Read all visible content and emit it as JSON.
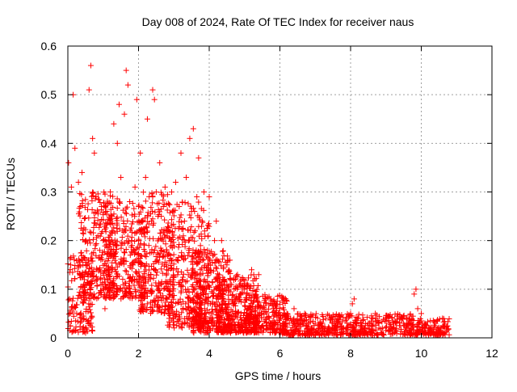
{
  "chart_data": {
    "type": "scatter",
    "title": "Day 008 of 2024, Rate Of TEC Index for receiver naus",
    "xlabel": "GPS time / hours",
    "ylabel": "ROTI / TECUs",
    "xlim": [
      0,
      12
    ],
    "ylim": [
      0,
      0.6
    ],
    "x_ticks": [
      {
        "value": 0,
        "label": "0"
      },
      {
        "value": 2,
        "label": "2"
      },
      {
        "value": 4,
        "label": "4"
      },
      {
        "value": 6,
        "label": "6"
      },
      {
        "value": 8,
        "label": "8"
      },
      {
        "value": 10,
        "label": "10"
      },
      {
        "value": 12,
        "label": "12"
      }
    ],
    "y_ticks": [
      {
        "value": 0,
        "label": "0"
      },
      {
        "value": 0.1,
        "label": "0.1"
      },
      {
        "value": 0.2,
        "label": "0.2"
      },
      {
        "value": 0.3,
        "label": "0.3"
      },
      {
        "value": 0.4,
        "label": "0.4"
      },
      {
        "value": 0.5,
        "label": "0.5"
      },
      {
        "value": 0.6,
        "label": "0.6"
      }
    ],
    "grid": true,
    "marker": "plus",
    "color": "#ff0000",
    "series": [
      {
        "name": "ROTI",
        "points": [
          [
            0.02,
            0.36
          ],
          [
            0.05,
            0.08
          ],
          [
            0.1,
            0.31
          ],
          [
            0.15,
            0.5
          ],
          [
            0.2,
            0.39
          ],
          [
            0.25,
            0.05
          ],
          [
            0.3,
            0.32
          ],
          [
            0.35,
            0.27
          ],
          [
            0.4,
            0.34
          ],
          [
            0.45,
            0.11
          ],
          [
            0.5,
            0.2
          ],
          [
            0.55,
            0.15
          ],
          [
            0.6,
            0.51
          ],
          [
            0.65,
            0.56
          ],
          [
            0.7,
            0.41
          ],
          [
            0.75,
            0.38
          ],
          [
            0.8,
            0.29
          ],
          [
            0.85,
            0.21
          ],
          [
            0.9,
            0.18
          ],
          [
            0.95,
            0.27
          ],
          [
            1.0,
            0.2
          ],
          [
            1.05,
            0.06
          ],
          [
            1.1,
            0.26
          ],
          [
            1.15,
            0.2
          ],
          [
            1.2,
            0.3
          ],
          [
            1.25,
            0.22
          ],
          [
            1.3,
            0.44
          ],
          [
            1.35,
            0.19
          ],
          [
            1.4,
            0.4
          ],
          [
            1.45,
            0.48
          ],
          [
            1.5,
            0.33
          ],
          [
            1.55,
            0.22
          ],
          [
            1.6,
            0.46
          ],
          [
            1.65,
            0.55
          ],
          [
            1.7,
            0.52
          ],
          [
            1.75,
            0.28
          ],
          [
            1.8,
            0.2
          ],
          [
            1.85,
            0.15
          ],
          [
            1.9,
            0.31
          ],
          [
            1.95,
            0.49
          ],
          [
            2.0,
            0.27
          ],
          [
            2.05,
            0.38
          ],
          [
            2.1,
            0.24
          ],
          [
            2.15,
            0.1
          ],
          [
            2.2,
            0.33
          ],
          [
            2.25,
            0.45
          ],
          [
            2.3,
            0.29
          ],
          [
            2.35,
            0.13
          ],
          [
            2.4,
            0.51
          ],
          [
            2.45,
            0.49
          ],
          [
            2.5,
            0.3
          ],
          [
            2.55,
            0.25
          ],
          [
            2.6,
            0.36
          ],
          [
            2.65,
            0.18
          ],
          [
            2.7,
            0.27
          ],
          [
            2.75,
            0.31
          ],
          [
            2.8,
            0.14
          ],
          [
            2.85,
            0.22
          ],
          [
            2.9,
            0.11
          ],
          [
            2.95,
            0.19
          ],
          [
            3.0,
            0.05
          ],
          [
            3.05,
            0.32
          ],
          [
            3.1,
            0.16
          ],
          [
            3.15,
            0.27
          ],
          [
            3.2,
            0.38
          ],
          [
            3.25,
            0.12
          ],
          [
            3.3,
            0.24
          ],
          [
            3.35,
            0.33
          ],
          [
            3.4,
            0.1
          ],
          [
            3.45,
            0.41
          ],
          [
            3.5,
            0.26
          ],
          [
            3.55,
            0.43
          ],
          [
            3.6,
            0.22
          ],
          [
            3.65,
            0.29
          ],
          [
            3.7,
            0.37
          ],
          [
            3.75,
            0.14
          ],
          [
            3.8,
            0.24
          ],
          [
            3.85,
            0.3
          ],
          [
            3.9,
            0.09
          ],
          [
            3.95,
            0.18
          ],
          [
            4.0,
            0.29
          ],
          [
            4.1,
            0.07
          ],
          [
            4.15,
            0.2
          ],
          [
            4.2,
            0.24
          ],
          [
            4.3,
            0.12
          ],
          [
            4.35,
            0.2
          ],
          [
            4.4,
            0.08
          ],
          [
            4.5,
            0.15
          ],
          [
            4.55,
            0.04
          ],
          [
            4.6,
            0.11
          ],
          [
            4.7,
            0.07
          ],
          [
            4.8,
            0.13
          ],
          [
            4.9,
            0.05
          ],
          [
            5.0,
            0.1
          ],
          [
            5.1,
            0.06
          ],
          [
            5.2,
            0.14
          ],
          [
            5.3,
            0.09
          ],
          [
            5.4,
            0.13
          ],
          [
            5.5,
            0.06
          ],
          [
            5.6,
            0.08
          ],
          [
            5.7,
            0.04
          ],
          [
            5.8,
            0.07
          ],
          [
            5.9,
            0.05
          ],
          [
            6.0,
            0.06
          ],
          [
            6.1,
            0.03
          ],
          [
            6.2,
            0.05
          ],
          [
            6.3,
            0.04
          ],
          [
            6.4,
            0.06
          ],
          [
            6.5,
            0.03
          ],
          [
            6.6,
            0.04
          ],
          [
            6.7,
            0.05
          ],
          [
            6.8,
            0.03
          ],
          [
            6.9,
            0.02
          ],
          [
            7.0,
            0.03
          ],
          [
            7.1,
            0.02
          ],
          [
            7.2,
            0.03
          ],
          [
            7.3,
            0.04
          ],
          [
            7.4,
            0.02
          ],
          [
            7.5,
            0.03
          ],
          [
            7.6,
            0.02
          ],
          [
            7.7,
            0.03
          ],
          [
            7.8,
            0.02
          ],
          [
            7.9,
            0.03
          ],
          [
            8.0,
            0.05
          ],
          [
            8.05,
            0.07
          ],
          [
            8.1,
            0.08
          ],
          [
            8.2,
            0.04
          ],
          [
            8.3,
            0.03
          ],
          [
            8.4,
            0.02
          ],
          [
            8.5,
            0.03
          ],
          [
            8.6,
            0.04
          ],
          [
            8.7,
            0.05
          ],
          [
            8.8,
            0.03
          ],
          [
            8.9,
            0.02
          ],
          [
            9.0,
            0.04
          ],
          [
            9.1,
            0.03
          ],
          [
            9.2,
            0.02
          ],
          [
            9.3,
            0.03
          ],
          [
            9.4,
            0.04
          ],
          [
            9.5,
            0.03
          ],
          [
            9.6,
            0.02
          ],
          [
            9.7,
            0.03
          ],
          [
            9.8,
            0.09
          ],
          [
            9.85,
            0.1
          ],
          [
            9.9,
            0.06
          ],
          [
            10.0,
            0.05
          ],
          [
            10.1,
            0.03
          ],
          [
            10.2,
            0.02
          ],
          [
            10.3,
            0.01
          ],
          [
            10.4,
            0.03
          ],
          [
            10.5,
            0.02
          ],
          [
            10.6,
            0.04
          ],
          [
            10.7,
            0.02
          ]
        ],
        "bands": [
          {
            "x0": 0.0,
            "x1": 0.7,
            "ymin": 0.01,
            "ymax": 0.17,
            "n": 140
          },
          {
            "x0": 0.3,
            "x1": 1.4,
            "ymin": 0.08,
            "ymax": 0.3,
            "n": 260
          },
          {
            "x0": 1.0,
            "x1": 2.2,
            "ymin": 0.08,
            "ymax": 0.28,
            "n": 300
          },
          {
            "x0": 2.0,
            "x1": 3.0,
            "ymin": 0.05,
            "ymax": 0.3,
            "n": 300
          },
          {
            "x0": 2.8,
            "x1": 4.0,
            "ymin": 0.02,
            "ymax": 0.28,
            "n": 330
          },
          {
            "x0": 3.5,
            "x1": 4.6,
            "ymin": 0.01,
            "ymax": 0.18,
            "n": 320
          },
          {
            "x0": 4.2,
            "x1": 5.4,
            "ymin": 0.01,
            "ymax": 0.13,
            "n": 330
          },
          {
            "x0": 5.0,
            "x1": 6.2,
            "ymin": 0.01,
            "ymax": 0.09,
            "n": 260
          },
          {
            "x0": 6.0,
            "x1": 7.6,
            "ymin": 0.005,
            "ymax": 0.05,
            "n": 240
          },
          {
            "x0": 7.6,
            "x1": 9.8,
            "ymin": 0.005,
            "ymax": 0.05,
            "n": 280
          },
          {
            "x0": 9.8,
            "x1": 10.8,
            "ymin": 0.005,
            "ymax": 0.04,
            "n": 130
          }
        ]
      }
    ]
  }
}
